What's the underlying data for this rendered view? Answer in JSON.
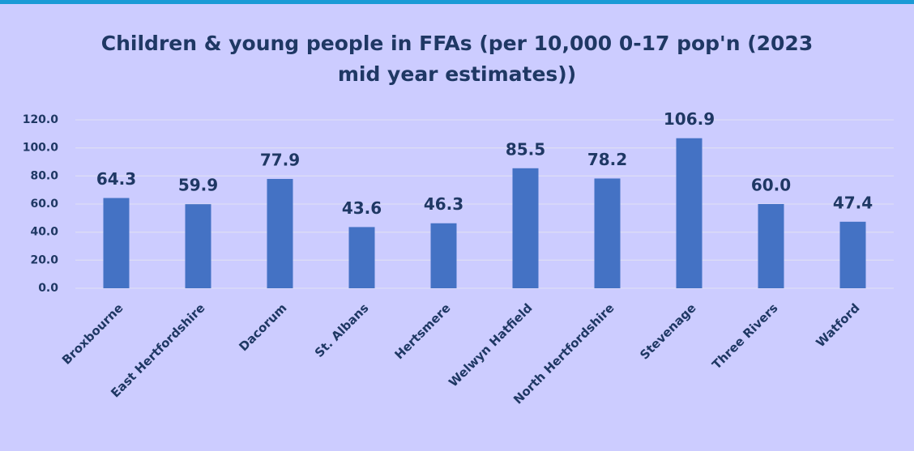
{
  "chart_data": {
    "type": "bar",
    "title": "Children & young people in FFAs (per 10,000 0-17 pop'n (2023 mid year estimates))",
    "categories": [
      "Broxbourne",
      "East Hertfordshire",
      "Dacorum",
      "St. Albans",
      "Hertsmere",
      "Welwyn Hatfield",
      "North Hertfordshire",
      "Stevenage",
      "Three Rivers",
      "Watford"
    ],
    "values": [
      64.3,
      59.9,
      77.9,
      43.6,
      46.3,
      85.5,
      78.2,
      106.9,
      60.0,
      47.4
    ],
    "value_labels": [
      "64.3",
      "59.9",
      "77.9",
      "43.6",
      "46.3",
      "85.5",
      "78.2",
      "106.9",
      "60.0",
      "47.4"
    ],
    "color": "#4472c4",
    "ylim": [
      0,
      120
    ],
    "yticks": [
      {
        "value": 0,
        "label": "0.0"
      },
      {
        "value": 20,
        "label": "20.0"
      },
      {
        "value": 40,
        "label": "40.0"
      },
      {
        "value": 60,
        "label": "60.0"
      },
      {
        "value": 80,
        "label": "80.0"
      },
      {
        "value": 100,
        "label": "100.0"
      },
      {
        "value": 120,
        "label": "120.0"
      }
    ],
    "grid": true
  }
}
